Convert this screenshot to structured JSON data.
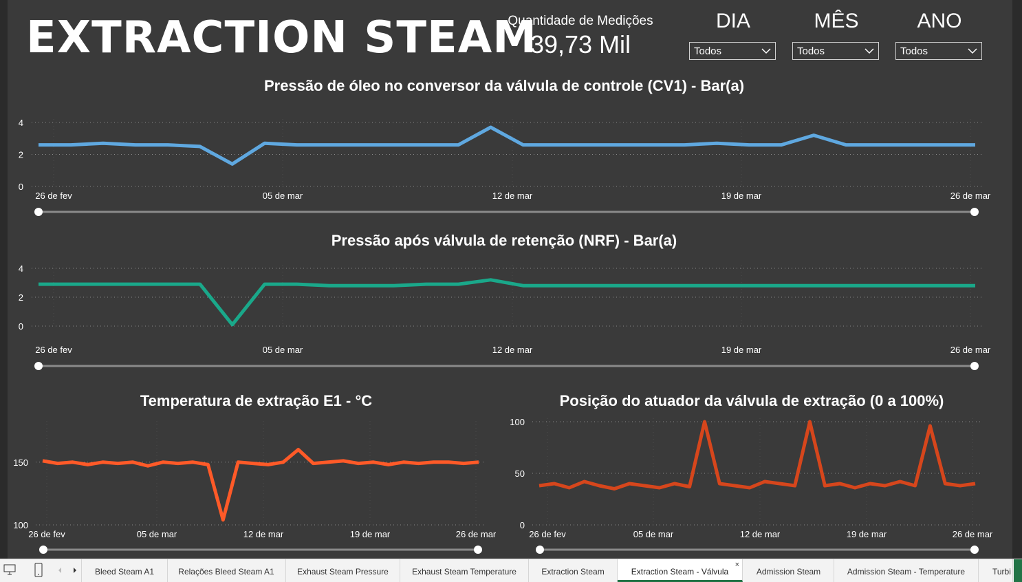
{
  "header": {
    "title": "EXTRACTION STEAM",
    "kpi_label": "Quantidade de Medições",
    "kpi_value": "39,73 Mil"
  },
  "slicers": [
    {
      "label": "DIA",
      "value": "Todos"
    },
    {
      "label": "MÊS",
      "value": "Todos"
    },
    {
      "label": "ANO",
      "value": "Todos"
    }
  ],
  "colors": {
    "background": "#3a3a3a",
    "cv1": "#5fa8e0",
    "nrf": "#1aa88a",
    "temp": "#ff5a28",
    "pos": "#d6461c",
    "grid": "#8a8a8a"
  },
  "chart_data": [
    {
      "type": "line",
      "title": "Pressão de óleo no conversor da válvula de controle (CV1) - Bar(a)",
      "x_ticks": [
        "26 de fev",
        "05 de mar",
        "12 de mar",
        "19 de mar",
        "26 de mar"
      ],
      "y_ticks": [
        "0",
        "2",
        "4"
      ],
      "ylim": [
        0,
        4
      ],
      "x_range": [
        "26 de fev",
        "26 de mar"
      ],
      "series": [
        {
          "values": [
            2.6,
            2.6,
            2.7,
            2.6,
            2.6,
            2.5,
            1.4,
            2.7,
            2.6,
            2.6,
            2.6,
            2.6,
            2.6,
            2.6,
            3.7,
            2.6,
            2.6,
            2.6,
            2.6,
            2.6,
            2.6,
            2.7,
            2.6,
            2.6,
            3.2,
            2.6,
            2.6,
            2.6,
            2.6,
            2.6
          ]
        }
      ],
      "color": "#5fa8e0"
    },
    {
      "type": "line",
      "title": "Pressão após válvula de retenção (NRF) - Bar(a)",
      "x_ticks": [
        "26 de fev",
        "05 de mar",
        "12 de mar",
        "19 de mar",
        "26 de mar"
      ],
      "y_ticks": [
        "0",
        "2",
        "4"
      ],
      "ylim": [
        0,
        4
      ],
      "x_range": [
        "26 de fev",
        "26 de mar"
      ],
      "series": [
        {
          "values": [
            2.9,
            2.9,
            2.9,
            2.9,
            2.9,
            2.9,
            0.1,
            2.9,
            2.9,
            2.8,
            2.8,
            2.8,
            2.9,
            2.9,
            3.2,
            2.8,
            2.8,
            2.8,
            2.8,
            2.8,
            2.8,
            2.8,
            2.8,
            2.8,
            2.8,
            2.8,
            2.8,
            2.8,
            2.8,
            2.8
          ]
        }
      ],
      "color": "#1aa88a"
    },
    {
      "type": "line",
      "title": "Temperatura de extração E1 - °C",
      "x_ticks": [
        "26 de fev",
        "05 de mar",
        "12 de mar",
        "19 de mar",
        "26 de mar"
      ],
      "y_ticks": [
        "100",
        "150"
      ],
      "ylim": [
        100,
        180
      ],
      "x_range": [
        "26 de fev",
        "26 de mar"
      ],
      "series": [
        {
          "values": [
            151,
            149,
            150,
            148,
            150,
            149,
            150,
            147,
            150,
            149,
            150,
            148,
            104,
            150,
            149,
            148,
            150,
            160,
            149,
            150,
            151,
            149,
            150,
            148,
            150,
            149,
            150,
            150,
            149,
            150
          ]
        }
      ],
      "color": "#ff5a28"
    },
    {
      "type": "line",
      "title": "Posição do atuador da válvula de extração (0 a 100%)",
      "x_ticks": [
        "26 de fev",
        "05 de mar",
        "12 de mar",
        "19 de mar",
        "26 de mar"
      ],
      "y_ticks": [
        "0",
        "50",
        "100"
      ],
      "ylim": [
        0,
        100
      ],
      "x_range": [
        "26 de fev",
        "26 de mar"
      ],
      "series": [
        {
          "values": [
            38,
            40,
            36,
            42,
            38,
            35,
            40,
            38,
            36,
            40,
            37,
            100,
            40,
            38,
            36,
            42,
            40,
            38,
            100,
            38,
            40,
            36,
            40,
            38,
            42,
            38,
            96,
            40,
            38,
            40
          ]
        }
      ],
      "color": "#d6461c"
    }
  ],
  "tabs": [
    {
      "label": "Bleed Steam A1"
    },
    {
      "label": "Relações Bleed Steam A1"
    },
    {
      "label": "Exhaust Steam Pressure"
    },
    {
      "label": "Exhaust Steam Temperature"
    },
    {
      "label": "Extraction Steam"
    },
    {
      "label": "Extraction Steam - Válvula"
    },
    {
      "label": "Admission Steam"
    },
    {
      "label": "Admission Steam - Temperature"
    },
    {
      "label": "Turbi"
    }
  ]
}
